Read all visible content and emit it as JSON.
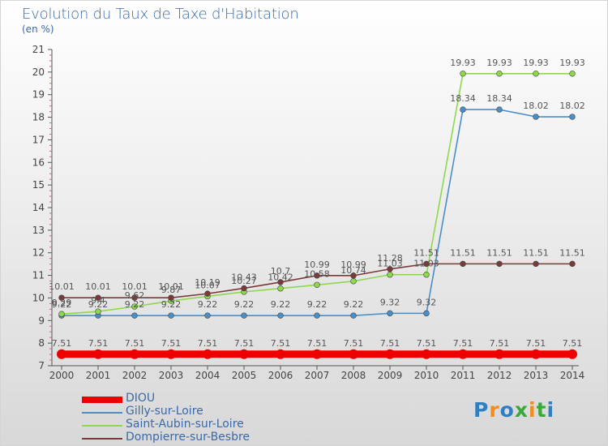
{
  "header": {
    "title": "Evolution du Taux de Taxe d'Habitation",
    "unit": "(en %)"
  },
  "logo": {
    "letters": [
      "P",
      "r",
      "o",
      "x",
      "i",
      "t",
      "i"
    ],
    "colors": [
      "#2f7fc1",
      "#f28c1b",
      "#2f7fc1",
      "#3aa83a",
      "#f28c1b",
      "#3aa83a",
      "#2f7fc1"
    ]
  },
  "chart_data": {
    "type": "line",
    "title": "Evolution du Taux de Taxe d'Habitation",
    "ylabel": "(en %)",
    "xlabel": "",
    "ylim": [
      7,
      21
    ],
    "yticks": [
      7,
      8,
      9,
      10,
      11,
      12,
      13,
      14,
      15,
      16,
      17,
      18,
      19,
      20,
      21
    ],
    "x": [
      "2000",
      "2001",
      "2002",
      "2003",
      "2004",
      "2005",
      "2006",
      "2007",
      "2008",
      "2009",
      "2010",
      "2011",
      "2012",
      "2013",
      "2014"
    ],
    "grid": false,
    "legend_position": "bottom-left",
    "series": [
      {
        "name": "DIOU",
        "color": "#ee0000",
        "values": [
          7.51,
          7.51,
          7.51,
          7.51,
          7.51,
          7.51,
          7.51,
          7.51,
          7.51,
          7.51,
          7.51,
          7.51,
          7.51,
          7.51,
          7.51
        ],
        "labels": [
          "7.51",
          "7.51",
          "7.51",
          "7.51",
          "7.51",
          "7.51",
          "7.51",
          "7.51",
          "7.51",
          "7.51",
          "7.51",
          "7.51",
          "7.51",
          "7.51",
          "7.51"
        ]
      },
      {
        "name": "Gilly-sur-Loire",
        "color": "#4a8ec8",
        "values": [
          9.22,
          9.22,
          9.22,
          9.22,
          9.22,
          9.22,
          9.22,
          9.22,
          9.22,
          9.32,
          9.32,
          18.34,
          18.34,
          18.02,
          18.02
        ],
        "labels": [
          "9.22",
          "9.22",
          "9.22",
          "9.22",
          "9.22",
          "9.22",
          "9.22",
          "9.22",
          "9.22",
          "9.32",
          "9.32",
          "18.34",
          "18.34",
          "18.02",
          "18.02"
        ]
      },
      {
        "name": "Saint-Aubin-sur-Loire",
        "color": "#8fd84e",
        "values": [
          9.29,
          9.4,
          9.62,
          9.87,
          10.07,
          10.27,
          10.42,
          10.58,
          10.74,
          11.03,
          11.03,
          19.93,
          19.93,
          19.93,
          19.93
        ],
        "labels": [
          "9.29",
          "9.4",
          "9.62",
          "9.87",
          "10.07",
          "10.27",
          "10.42",
          "10.58",
          "10.74",
          "11.03",
          "11.03",
          "19.93",
          "19.93",
          "19.93",
          "19.93"
        ]
      },
      {
        "name": "Dompierre-sur-Besbre",
        "color": "#7b3a3a",
        "values": [
          10.01,
          10.01,
          10.01,
          10.01,
          10.19,
          10.43,
          10.7,
          10.99,
          10.99,
          11.28,
          11.51,
          11.51,
          11.51,
          11.51,
          11.51
        ],
        "labels": [
          "10.01",
          "10.01",
          "10.01",
          "10.01",
          "10.19",
          "10.43",
          "10.7",
          "10.99",
          "10.99",
          "11.28",
          "11.51",
          "11.51",
          "11.51",
          "11.51",
          "11.51"
        ]
      }
    ]
  }
}
